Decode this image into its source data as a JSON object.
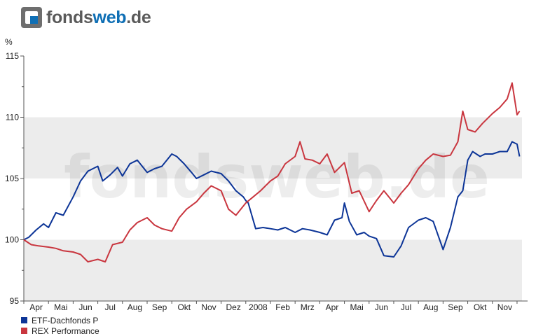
{
  "brand": {
    "name": "fonds",
    "accent": "web",
    "suffix": ".de"
  },
  "watermark": "fondsweb.de",
  "colors": {
    "series1": "#0d3597",
    "series2": "#c9363f",
    "band": "#ececec"
  },
  "chart_data": {
    "type": "line",
    "ylabel": "%",
    "ylim": [
      95,
      115
    ],
    "yticks": [
      95,
      100,
      105,
      110,
      115
    ],
    "xlim": [
      0,
      20.2
    ],
    "month_ticks": [
      "Apr",
      "Mai",
      "Jun",
      "Jul",
      "Aug",
      "Sep",
      "Okt",
      "Nov",
      "Dez",
      "2008",
      "Feb",
      "Mrz",
      "Apr",
      "Mai",
      "Jun",
      "Jul",
      "Aug",
      "Sep",
      "Okt",
      "Nov"
    ],
    "grid": false,
    "legend_position": "bottom-left",
    "series": [
      {
        "name": "ETF-Dachfonds P",
        "x": [
          0,
          0.2,
          0.5,
          0.8,
          1.0,
          1.3,
          1.6,
          2.0,
          2.3,
          2.6,
          3.0,
          3.2,
          3.5,
          3.8,
          4.0,
          4.3,
          4.6,
          5.0,
          5.3,
          5.6,
          6.0,
          6.2,
          6.5,
          6.8,
          7.0,
          7.3,
          7.6,
          8.0,
          8.3,
          8.6,
          8.9,
          9.0,
          9.1,
          9.4,
          9.7,
          10.0,
          10.3,
          10.6,
          11.0,
          11.3,
          11.6,
          12.0,
          12.3,
          12.6,
          12.9,
          13.0,
          13.2,
          13.5,
          13.8,
          14.0,
          14.3,
          14.6,
          15.0,
          15.3,
          15.6,
          16.0,
          16.3,
          16.6,
          17.0,
          17.3,
          17.6,
          17.8,
          18.0,
          18.2,
          18.5,
          18.7,
          19.0,
          19.3,
          19.6,
          19.8,
          20.0,
          20.1
        ],
        "y": [
          100.0,
          100.2,
          100.8,
          101.3,
          101.0,
          102.2,
          102.0,
          103.5,
          104.8,
          105.6,
          106.0,
          104.8,
          105.3,
          105.9,
          105.2,
          106.2,
          106.5,
          105.5,
          105.8,
          106.0,
          107.0,
          106.8,
          106.2,
          105.5,
          105.0,
          105.3,
          105.6,
          105.4,
          104.8,
          104.0,
          103.5,
          103.2,
          103.0,
          100.9,
          101.0,
          100.9,
          100.8,
          101.0,
          100.6,
          100.9,
          100.8,
          100.6,
          100.4,
          101.6,
          101.8,
          103.0,
          101.5,
          100.4,
          100.6,
          100.3,
          100.1,
          98.7,
          98.6,
          99.5,
          101.0,
          101.6,
          101.8,
          101.5,
          99.2,
          101.0,
          103.5,
          104.0,
          106.5,
          107.2,
          106.8,
          107.0,
          107.0,
          107.2,
          107.2,
          108.0,
          107.8,
          106.8
        ]
      },
      {
        "name": "REX Performance",
        "x": [
          0,
          0.3,
          0.6,
          1.0,
          1.3,
          1.6,
          2.0,
          2.3,
          2.6,
          3.0,
          3.3,
          3.6,
          4.0,
          4.3,
          4.6,
          5.0,
          5.3,
          5.6,
          6.0,
          6.3,
          6.6,
          7.0,
          7.3,
          7.6,
          8.0,
          8.3,
          8.6,
          9.0,
          9.3,
          9.6,
          10.0,
          10.3,
          10.6,
          11.0,
          11.2,
          11.4,
          11.7,
          12.0,
          12.3,
          12.6,
          13.0,
          13.3,
          13.6,
          14.0,
          14.3,
          14.6,
          15.0,
          15.3,
          15.6,
          16.0,
          16.3,
          16.6,
          17.0,
          17.3,
          17.6,
          17.8,
          18.0,
          18.3,
          18.6,
          19.0,
          19.3,
          19.6,
          19.8,
          20.0,
          20.1
        ],
        "y": [
          100.0,
          99.6,
          99.5,
          99.4,
          99.3,
          99.1,
          99.0,
          98.8,
          98.2,
          98.4,
          98.2,
          99.6,
          99.8,
          100.8,
          101.4,
          101.8,
          101.2,
          100.9,
          100.7,
          101.8,
          102.5,
          103.1,
          103.8,
          104.4,
          104.0,
          102.5,
          102.0,
          103.0,
          103.5,
          104.0,
          104.8,
          105.2,
          106.2,
          106.8,
          108.0,
          106.6,
          106.5,
          106.2,
          107.0,
          105.5,
          106.3,
          103.8,
          104.0,
          102.3,
          103.2,
          104.0,
          103.0,
          103.8,
          104.5,
          105.8,
          106.5,
          107.0,
          106.8,
          106.9,
          108.0,
          110.5,
          109.0,
          108.8,
          109.5,
          110.3,
          110.8,
          111.5,
          112.8,
          110.2,
          110.5
        ]
      }
    ]
  }
}
